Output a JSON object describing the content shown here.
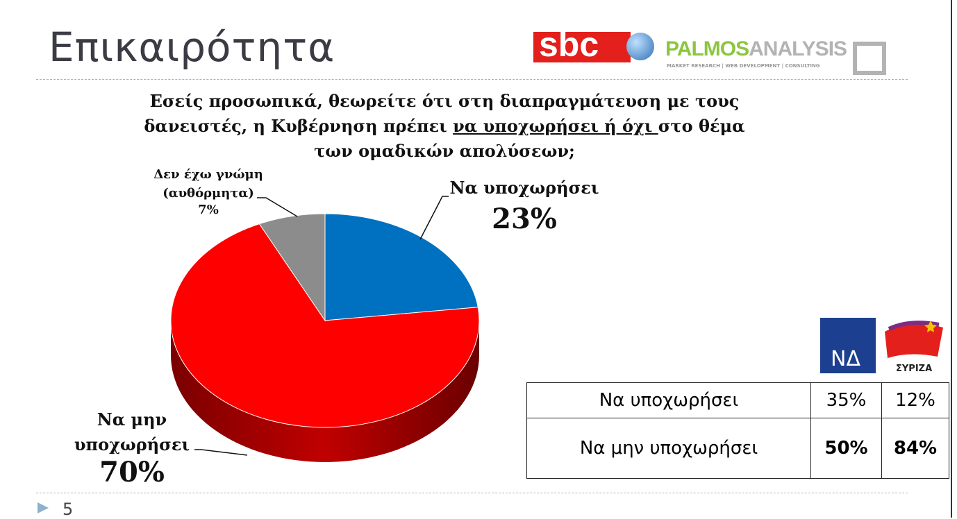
{
  "slide": {
    "title": "Επικαιρότητα",
    "page_number": "5",
    "logos": {
      "sbc": "sbc",
      "palmos_green": "PALMOS",
      "palmos_grey": "ANALYSIS",
      "palmos_tagline": "MARKET RESEARCH | WEB DEVELOPMENT | CONSULTING",
      "nd": "ΝΔ",
      "syriza": "ΣΥΡΙΖΑ"
    }
  },
  "chart_data": {
    "type": "pie",
    "title": {
      "before": "Εσείς προσωπικά, θεωρείτε ότι στη διαπραγμάτευση με τους δανειστές, η Κυβέρνηση πρέπει ",
      "underlined": "να υποχωρήσει ή όχι ",
      "after": "στο θέμα των ομαδικών απολύσεων;"
    },
    "categories": [
      "Να υποχωρήσει",
      "Να μην υποχωρήσει",
      "Δεν έχω γνώμη (αυθόρμητα)"
    ],
    "values": [
      23,
      70,
      7
    ],
    "value_labels": [
      "23%",
      "70%",
      "7%"
    ],
    "colors": [
      "#0070c0",
      "#ff0000",
      "#8c8c8c"
    ]
  },
  "table": {
    "rows": [
      [
        "Να υποχωρήσει",
        "35%",
        "12%"
      ],
      [
        "Να μην υποχωρήσει",
        "50%",
        "84%"
      ]
    ]
  }
}
